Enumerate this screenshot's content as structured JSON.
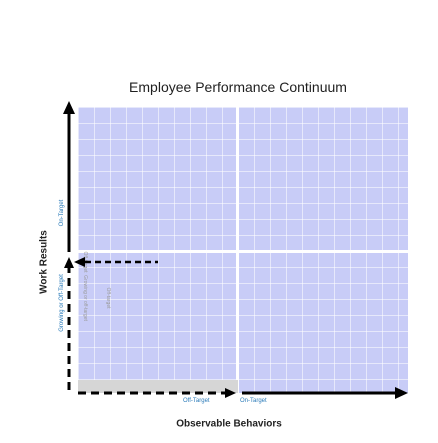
{
  "title": "Employee Performance Continuum",
  "axes": {
    "x": {
      "title": "Observable Behaviors",
      "low_label": "Off-Target",
      "high_label": "On-Target"
    },
    "y": {
      "title": "Work Results",
      "low_label": "Growing or Off-Target",
      "high_label": "On-Target"
    }
  },
  "faint_labels": [
    "Off-target",
    "Growing or off-target",
    "Off-target"
  ],
  "colors": {
    "quadrant_fill": "#c8ccf7",
    "accent_label": "#2b7bb9",
    "arrows": "#000000"
  }
}
